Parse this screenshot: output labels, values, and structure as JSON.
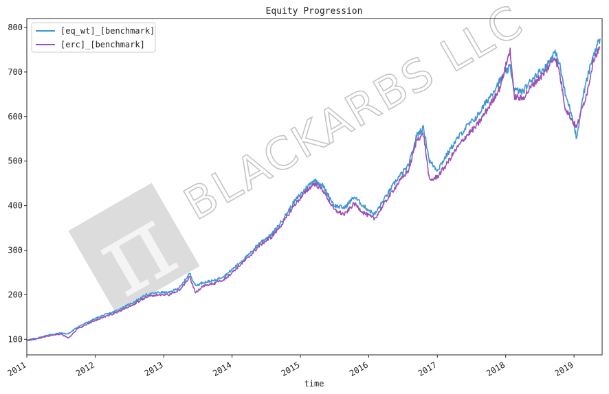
{
  "chart_data": {
    "type": "line",
    "title": "Equity Progression",
    "xlabel": "time",
    "ylabel": "",
    "xlim": [
      "2011-01-01",
      "2019-05-31"
    ],
    "ylim": [
      65,
      820
    ],
    "x_ticks": [
      "2011",
      "2012",
      "2013",
      "2014",
      "2015",
      "2016",
      "2017",
      "2018",
      "2019"
    ],
    "y_ticks": [
      100,
      200,
      300,
      400,
      500,
      600,
      700,
      800
    ],
    "grid": false,
    "legend_position": "top-left",
    "series": [
      {
        "name": "[eq_wt]_[benchmark]",
        "color": "#3a96d4",
        "x": [
          "2011-01-01",
          "2011-03-01",
          "2011-05-01",
          "2011-07-01",
          "2011-08-10",
          "2011-10-01",
          "2011-12-01",
          "2012-02-01",
          "2012-04-01",
          "2012-06-01",
          "2012-08-01",
          "2012-10-01",
          "2012-12-01",
          "2013-02-01",
          "2013-04-01",
          "2013-05-20",
          "2013-06-20",
          "2013-08-01",
          "2013-10-01",
          "2013-12-01",
          "2014-02-01",
          "2014-04-01",
          "2014-06-01",
          "2014-08-01",
          "2014-10-01",
          "2014-12-01",
          "2015-02-01",
          "2015-03-15",
          "2015-05-01",
          "2015-07-01",
          "2015-08-25",
          "2015-10-15",
          "2015-12-01",
          "2016-02-01",
          "2016-04-01",
          "2016-06-01",
          "2016-08-01",
          "2016-09-15",
          "2016-10-20",
          "2016-11-20",
          "2017-01-01",
          "2017-02-15",
          "2017-04-01",
          "2017-06-01",
          "2017-08-01",
          "2017-10-01",
          "2017-12-01",
          "2018-01-25",
          "2018-02-15",
          "2018-04-01",
          "2018-06-01",
          "2018-08-01",
          "2018-09-20",
          "2018-10-15",
          "2018-11-15",
          "2018-12-24",
          "2019-01-15",
          "2019-02-15",
          "2019-03-15",
          "2019-04-15",
          "2019-05-20"
        ],
        "values": [
          98,
          103,
          110,
          114,
          112,
          128,
          140,
          152,
          160,
          172,
          185,
          200,
          205,
          205,
          218,
          248,
          220,
          228,
          232,
          245,
          268,
          290,
          318,
          335,
          370,
          410,
          440,
          458,
          445,
          400,
          395,
          420,
          400,
          380,
          420,
          460,
          490,
          560,
          575,
          500,
          480,
          510,
          540,
          575,
          600,
          640,
          680,
          712,
          660,
          655,
          690,
          710,
          745,
          720,
          650,
          600,
          550,
          640,
          690,
          740,
          775
        ]
      },
      {
        "name": "[erc]_[benchmark]",
        "color": "#9b4fb8",
        "x": [
          "2011-01-01",
          "2011-03-01",
          "2011-05-01",
          "2011-07-01",
          "2011-08-10",
          "2011-10-01",
          "2011-12-01",
          "2012-02-01",
          "2012-04-01",
          "2012-06-01",
          "2012-08-01",
          "2012-10-01",
          "2012-12-01",
          "2013-02-01",
          "2013-04-01",
          "2013-05-20",
          "2013-06-20",
          "2013-08-01",
          "2013-10-01",
          "2013-12-01",
          "2014-02-01",
          "2014-04-01",
          "2014-06-01",
          "2014-08-01",
          "2014-10-01",
          "2014-12-01",
          "2015-02-01",
          "2015-03-15",
          "2015-05-01",
          "2015-07-01",
          "2015-08-25",
          "2015-10-15",
          "2015-12-01",
          "2016-02-01",
          "2016-04-01",
          "2016-06-01",
          "2016-08-01",
          "2016-09-15",
          "2016-10-20",
          "2016-11-20",
          "2017-01-01",
          "2017-02-15",
          "2017-04-01",
          "2017-06-01",
          "2017-08-01",
          "2017-10-01",
          "2017-12-01",
          "2018-01-25",
          "2018-02-15",
          "2018-04-01",
          "2018-06-01",
          "2018-08-01",
          "2018-09-20",
          "2018-10-15",
          "2018-11-15",
          "2018-12-24",
          "2019-01-15",
          "2019-02-15",
          "2019-03-15",
          "2019-04-15",
          "2019-05-20"
        ],
        "values": [
          97,
          101,
          108,
          112,
          103,
          124,
          136,
          148,
          156,
          167,
          180,
          195,
          200,
          200,
          212,
          240,
          205,
          220,
          225,
          238,
          262,
          285,
          312,
          330,
          362,
          402,
          432,
          450,
          435,
          390,
          380,
          405,
          385,
          370,
          410,
          448,
          480,
          550,
          560,
          455,
          465,
          490,
          520,
          555,
          580,
          620,
          665,
          750,
          645,
          640,
          675,
          700,
          735,
          700,
          620,
          590,
          575,
          620,
          660,
          730,
          755
        ]
      }
    ]
  },
  "watermark": {
    "text": "BLACKARBS LLC",
    "symbol": "π"
  }
}
